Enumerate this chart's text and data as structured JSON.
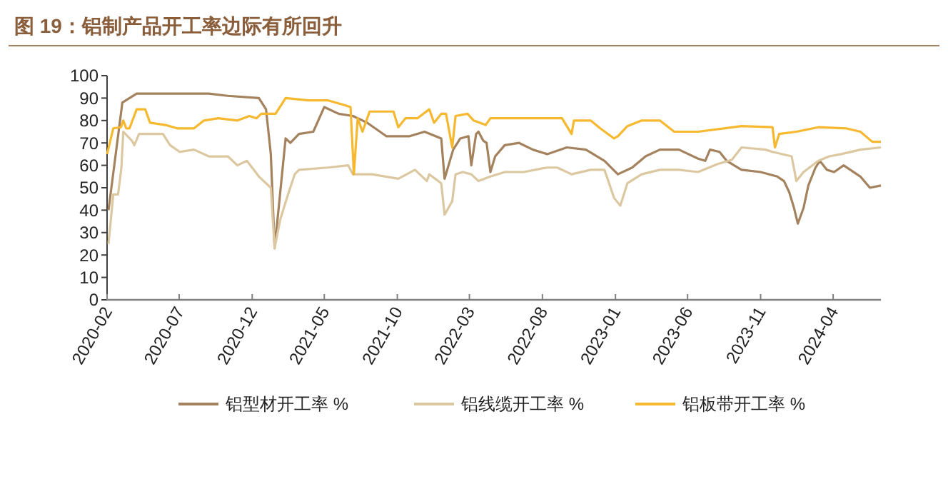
{
  "chart_data": {
    "type": "line",
    "title": "图 19：铝制产品开工率边际有所回升",
    "xlim": [
      "2020-02-01",
      "2024-07-10"
    ],
    "xticks": [
      "2020-02",
      "2020-07",
      "2020-12",
      "2021-05",
      "2021-10",
      "2022-03",
      "2022-08",
      "2023-01",
      "2023-06",
      "2023-11",
      "2024-04"
    ],
    "ylim": [
      0,
      100
    ],
    "yticks": [
      0,
      10,
      20,
      30,
      40,
      50,
      60,
      70,
      80,
      90,
      100
    ],
    "grid": false,
    "legend": "bottom",
    "line_style": "solid",
    "marker": "none",
    "series": [
      {
        "name": "铝型材开工率 %",
        "color": "#a4825e",
        "x": [
          "2020-02-04",
          "2020-03-04",
          "2020-04-03",
          "2020-09-01",
          "2020-10-11",
          "2020-12-15",
          "2020-12-30",
          "2021-01-09",
          "2021-01-17",
          "2021-02-09",
          "2021-02-19",
          "2021-03-09",
          "2021-04-08",
          "2021-05-01",
          "2021-05-31",
          "2021-06-30",
          "2021-07-30",
          "2021-09-08",
          "2021-10-27",
          "2021-11-27",
          "2022-01-01",
          "2022-01-08",
          "2022-01-26",
          "2022-02-10",
          "2022-02-27",
          "2022-03-05",
          "2022-03-15",
          "2022-03-20",
          "2022-03-30",
          "2022-04-06",
          "2022-04-14",
          "2022-04-24",
          "2022-05-14",
          "2022-06-13",
          "2022-07-12",
          "2022-08-11",
          "2022-09-21",
          "2022-10-31",
          "2022-12-09",
          "2023-01-06",
          "2023-02-05",
          "2023-03-05",
          "2023-04-04",
          "2023-05-14",
          "2023-06-23",
          "2023-07-08",
          "2023-07-18",
          "2023-08-07",
          "2023-08-22",
          "2023-09-22",
          "2023-11-01",
          "2023-12-06",
          "2023-12-20",
          "2023-12-31",
          "2024-01-10",
          "2024-01-18",
          "2024-01-30",
          "2024-02-09",
          "2024-02-24",
          "2024-03-04",
          "2024-03-19",
          "2024-04-03",
          "2024-04-23",
          "2024-05-28",
          "2024-06-17",
          "2024-07-10"
        ],
        "values": [
          40,
          88,
          92,
          92,
          91,
          90,
          85,
          65,
          23,
          72,
          70,
          74,
          75,
          86,
          83,
          82,
          79,
          73,
          73,
          75,
          72,
          54,
          67,
          72,
          73,
          60,
          74,
          75,
          71,
          70,
          57,
          64,
          69,
          70,
          67,
          65,
          68,
          67,
          62,
          56,
          59,
          64,
          67,
          67,
          63,
          62,
          67,
          66,
          62,
          58,
          57,
          55,
          53,
          48,
          41,
          34,
          41,
          51,
          59,
          62,
          58,
          57,
          60,
          55,
          50,
          51
        ]
      },
      {
        "name": "铝线缆开工率 %",
        "color": "#dcc8a0",
        "x": [
          "2020-02-04",
          "2020-02-14",
          "2020-02-24",
          "2020-03-02",
          "2020-03-06",
          "2020-03-24",
          "2020-03-29",
          "2020-04-08",
          "2020-05-28",
          "2020-06-12",
          "2020-07-02",
          "2020-08-01",
          "2020-09-01",
          "2020-10-11",
          "2020-10-31",
          "2020-11-20",
          "2020-12-15",
          "2021-01-09",
          "2021-01-17",
          "2021-01-29",
          "2021-02-14",
          "2021-02-28",
          "2021-03-09",
          "2021-05-08",
          "2021-06-20",
          "2021-06-30",
          "2021-08-09",
          "2021-10-03",
          "2021-11-07",
          "2021-12-02",
          "2021-12-07",
          "2022-01-01",
          "2022-01-08",
          "2022-01-24",
          "2022-01-31",
          "2022-02-15",
          "2022-03-05",
          "2022-03-20",
          "2022-04-14",
          "2022-05-14",
          "2022-06-23",
          "2022-08-11",
          "2022-09-01",
          "2022-10-01",
          "2022-11-10",
          "2022-12-09",
          "2022-12-29",
          "2023-01-11",
          "2023-01-26",
          "2023-02-25",
          "2023-04-04",
          "2023-05-14",
          "2023-06-23",
          "2023-08-02",
          "2023-09-02",
          "2023-09-22",
          "2023-11-11",
          "2023-11-26",
          "2024-01-05",
          "2024-01-15",
          "2024-01-30",
          "2024-03-01",
          "2024-03-24",
          "2024-04-18",
          "2024-05-28",
          "2024-07-10"
        ],
        "values": [
          25,
          47,
          47,
          59,
          75,
          71,
          69,
          74,
          74,
          69,
          66,
          67,
          64,
          64,
          60,
          62,
          55,
          50,
          23,
          36,
          47,
          56,
          58,
          59,
          60,
          56,
          56,
          54,
          58,
          53,
          56,
          52,
          38,
          44,
          56,
          57,
          56,
          53,
          55,
          57,
          57,
          59,
          59,
          56,
          58,
          58,
          45.5,
          42,
          52,
          56,
          58,
          58,
          57,
          60.5,
          62.5,
          68,
          67,
          66,
          64,
          53,
          57,
          62,
          64,
          65,
          67,
          68
        ]
      },
      {
        "name": "铝板带开工率 %",
        "color": "#f5b82e",
        "x": [
          "2020-02-01",
          "2020-02-14",
          "2020-03-01",
          "2020-03-06",
          "2020-03-12",
          "2020-03-19",
          "2020-04-03",
          "2020-04-21",
          "2020-05-01",
          "2020-06-02",
          "2020-06-27",
          "2020-08-01",
          "2020-08-22",
          "2020-09-21",
          "2020-10-31",
          "2020-11-25",
          "2020-12-10",
          "2020-12-20",
          "2021-01-19",
          "2021-02-09",
          "2021-03-29",
          "2021-05-08",
          "2021-06-10",
          "2021-06-25",
          "2021-07-02",
          "2021-07-10",
          "2021-07-20",
          "2021-08-04",
          "2021-09-23",
          "2021-10-03",
          "2021-10-18",
          "2021-11-12",
          "2021-12-07",
          "2021-12-17",
          "2022-01-01",
          "2022-01-11",
          "2022-01-24",
          "2022-01-31",
          "2022-02-25",
          "2022-03-10",
          "2022-04-04",
          "2022-04-14",
          "2022-07-02",
          "2022-09-11",
          "2022-10-01",
          "2022-10-06",
          "2022-11-10",
          "2022-11-30",
          "2022-12-29",
          "2023-01-06",
          "2023-01-26",
          "2023-02-25",
          "2023-04-04",
          "2023-05-04",
          "2023-06-23",
          "2023-09-22",
          "2023-11-26",
          "2023-12-01",
          "2023-12-10",
          "2024-01-15",
          "2024-03-01",
          "2024-04-28",
          "2024-05-28",
          "2024-06-22",
          "2024-07-10"
        ],
        "values": [
          65,
          76.5,
          77,
          80,
          76.5,
          76.5,
          85,
          85,
          79,
          78,
          76.5,
          76.5,
          80,
          81,
          80,
          82,
          81,
          83,
          83,
          90,
          89,
          89,
          87,
          86,
          56,
          81,
          75,
          84,
          84,
          77,
          81,
          81,
          85,
          79,
          83,
          83,
          68,
          82,
          83,
          80,
          78,
          81,
          81,
          81,
          74,
          80,
          80,
          76.5,
          72,
          73,
          77.5,
          80,
          80,
          75,
          75,
          77.5,
          77,
          68,
          74,
          75,
          77,
          76.5,
          75,
          70.5,
          70.5
        ]
      }
    ]
  }
}
